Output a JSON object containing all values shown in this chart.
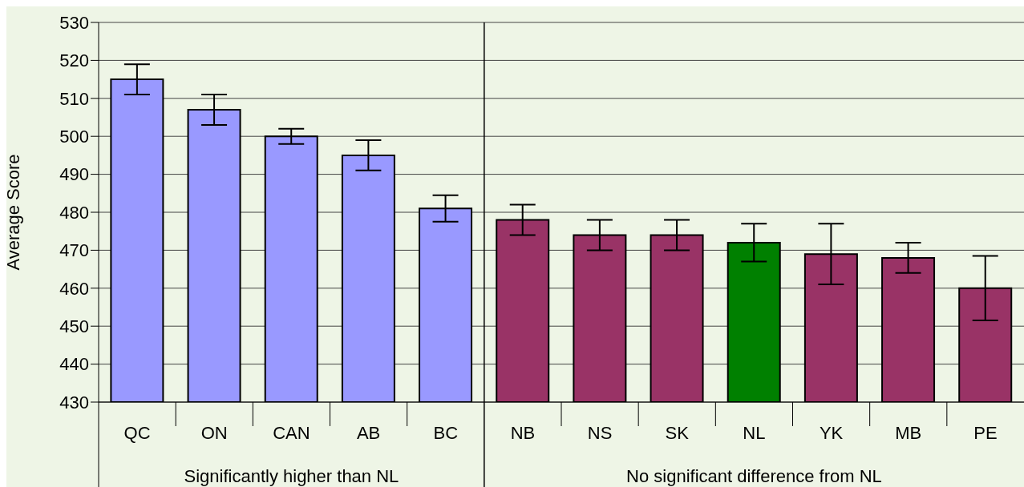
{
  "chart_data": {
    "type": "bar",
    "ylabel": "Average Score",
    "categories": [
      "QC",
      "ON",
      "CAN",
      "AB",
      "BC",
      "NB",
      "NS",
      "SK",
      "NL",
      "YK",
      "MB",
      "PE"
    ],
    "values": [
      515,
      507,
      500,
      495,
      481,
      478,
      474,
      474,
      472,
      469,
      468,
      460
    ],
    "errors": [
      4,
      4,
      2,
      4,
      3.5,
      4,
      4,
      4,
      5,
      8,
      4,
      8.5
    ],
    "colors": [
      "#9999ff",
      "#9999ff",
      "#9999ff",
      "#9999ff",
      "#9999ff",
      "#993366",
      "#993366",
      "#993366",
      "#008000",
      "#993366",
      "#993366",
      "#993366"
    ],
    "ylim": [
      430,
      530
    ],
    "yticks": [
      430,
      440,
      450,
      460,
      470,
      480,
      490,
      500,
      510,
      520,
      530
    ],
    "grid": "y",
    "legend": false,
    "ref_lines": [
      {
        "axis": "x",
        "value": "NB",
        "color": "#000000"
      }
    ],
    "annotations": [
      "Significantly higher than NL",
      "No significant difference from NL"
    ]
  }
}
